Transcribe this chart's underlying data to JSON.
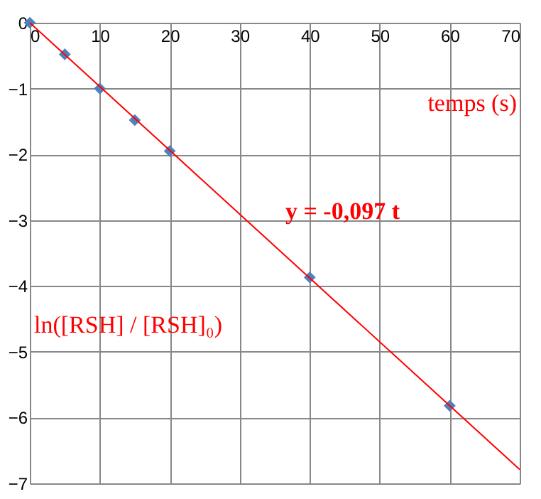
{
  "chart_data": {
    "type": "scatter",
    "xlabel": "temps (s)",
    "ylabel": "ln([RSH] / [RSH]₀)",
    "xlim": [
      0,
      70
    ],
    "xticks": [
      0,
      10,
      20,
      30,
      40,
      50,
      60,
      70
    ],
    "ylim": [
      -7,
      0
    ],
    "yticks": [
      -7,
      -6,
      -5,
      -4,
      -3,
      -2,
      -1,
      0
    ],
    "grid": true,
    "annotations": [
      "y = -0,097 t"
    ],
    "series": [
      {
        "color": "#4f81bd",
        "marker": "diamond",
        "x": [
          0,
          5,
          10,
          15,
          20,
          40,
          60
        ],
        "values": [
          0,
          -0.48,
          -1.0,
          -1.48,
          -1.95,
          -3.87,
          -5.82
        ]
      },
      {
        "type": "line",
        "color": "#ff0000",
        "line_style": "solid",
        "x": [
          0,
          70
        ],
        "values": [
          0,
          -6.79
        ]
      }
    ]
  }
}
